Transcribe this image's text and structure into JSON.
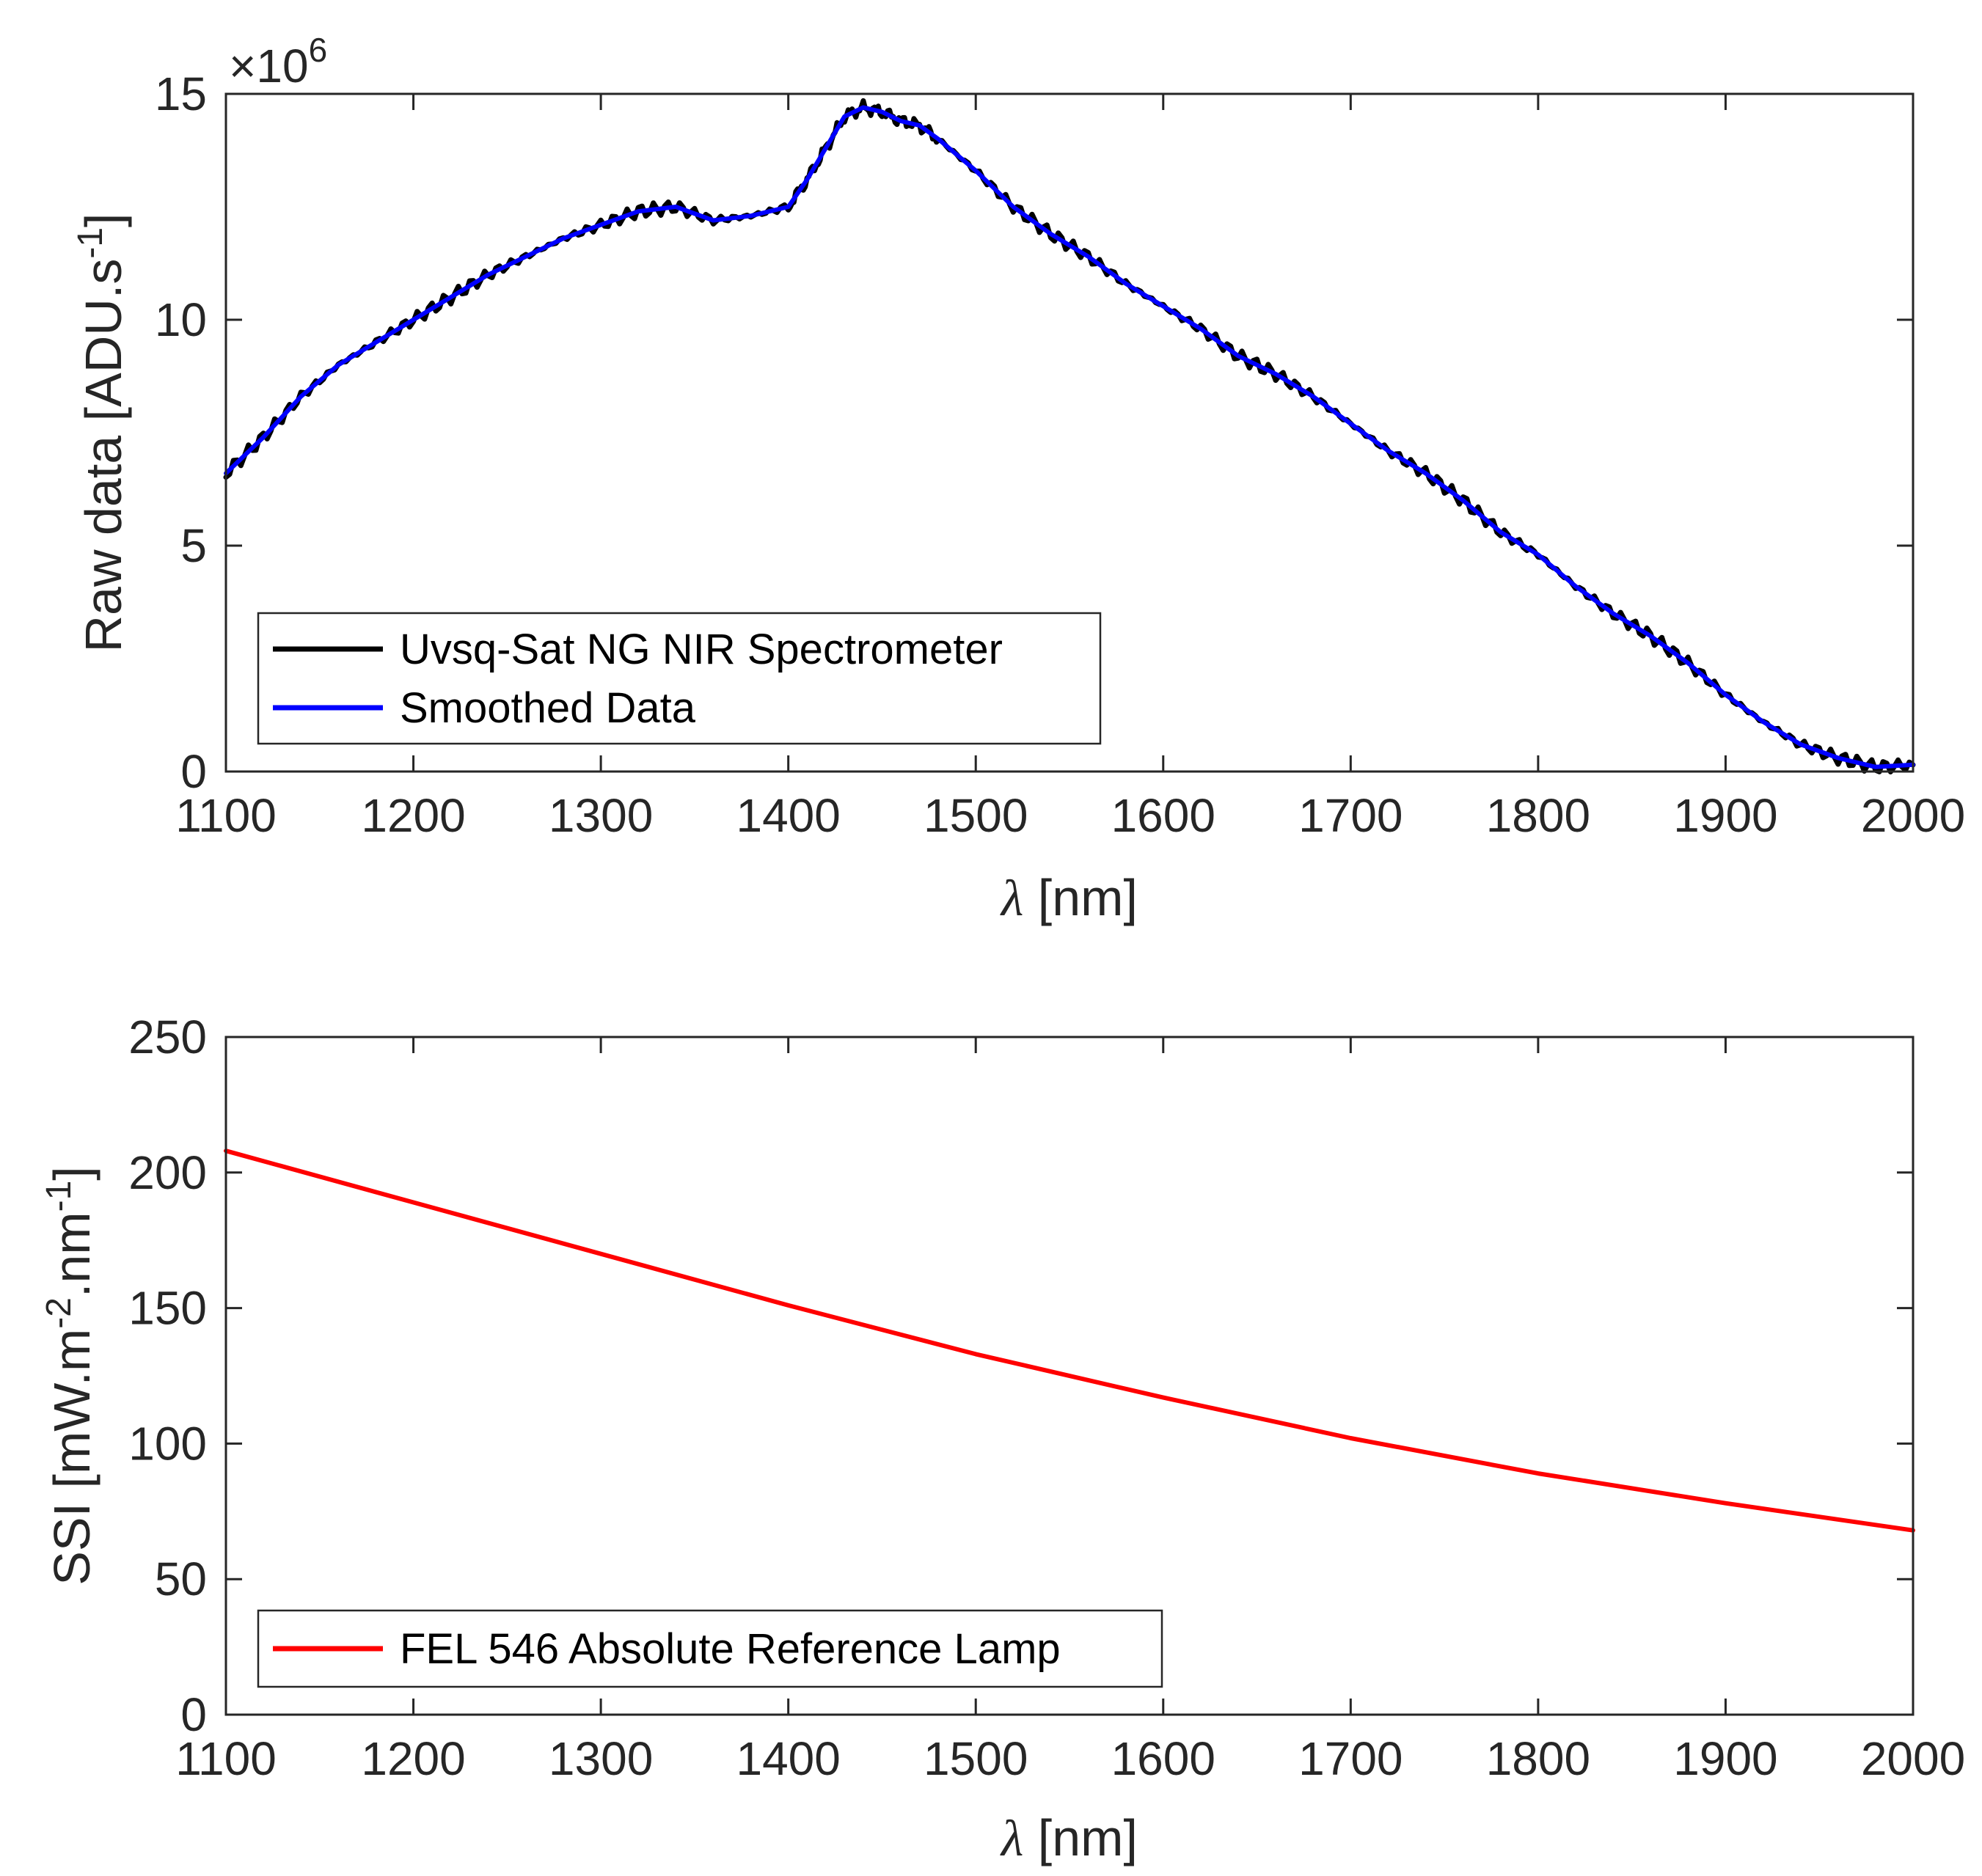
{
  "chart_data": [
    {
      "type": "line",
      "panel": "top",
      "xlabel_symbol": "λ",
      "xlabel_unit": " [nm]",
      "ylabel_text": "Raw data [ADU.s",
      "ylabel_sup": "-1",
      "ylabel_end": "]",
      "xlim": [
        1100,
        2000
      ],
      "ylim": [
        0,
        15
      ],
      "y_multiplier_prefix": "×10",
      "y_multiplier_exp": "6",
      "xticks": [
        "1100",
        "1200",
        "1300",
        "1400",
        "1500",
        "1600",
        "1700",
        "1800",
        "1900",
        "2000"
      ],
      "yticks": [
        "0",
        "5",
        "10",
        "15"
      ],
      "legend_position": "bottom-left",
      "series": [
        {
          "name": "Uvsq-Sat NG NIR Spectrometer",
          "color": "#000000",
          "noise": true,
          "x": [
            1100,
            1120,
            1140,
            1160,
            1180,
            1200,
            1220,
            1240,
            1260,
            1280,
            1300,
            1320,
            1340,
            1360,
            1380,
            1400,
            1410,
            1420,
            1430,
            1440,
            1450,
            1460,
            1470,
            1480,
            1500,
            1520,
            1540,
            1560,
            1580,
            1600,
            1620,
            1640,
            1660,
            1680,
            1700,
            1720,
            1740,
            1760,
            1780,
            1800,
            1820,
            1840,
            1860,
            1880,
            1900,
            1920,
            1940,
            1960,
            1980,
            2000
          ],
          "y": [
            6.6,
            7.4,
            8.3,
            9.0,
            9.5,
            10.0,
            10.5,
            11.0,
            11.4,
            11.8,
            12.1,
            12.4,
            12.5,
            12.2,
            12.3,
            12.5,
            13.1,
            13.8,
            14.5,
            14.7,
            14.6,
            14.4,
            14.3,
            14.0,
            13.3,
            12.5,
            11.9,
            11.4,
            10.8,
            10.3,
            9.8,
            9.2,
            8.8,
            8.3,
            7.7,
            7.1,
            6.6,
            6.0,
            5.3,
            4.8,
            4.1,
            3.5,
            3.0,
            2.4,
            1.7,
            1.1,
            0.6,
            0.3,
            0.1,
            0.15
          ]
        },
        {
          "name": "Smoothed Data",
          "color": "#0000ff",
          "noise": false,
          "x": [
            1100,
            1120,
            1140,
            1160,
            1180,
            1200,
            1220,
            1240,
            1260,
            1280,
            1300,
            1320,
            1340,
            1360,
            1380,
            1400,
            1410,
            1420,
            1430,
            1440,
            1450,
            1460,
            1470,
            1480,
            1500,
            1520,
            1540,
            1560,
            1580,
            1600,
            1620,
            1640,
            1660,
            1680,
            1700,
            1720,
            1740,
            1760,
            1780,
            1800,
            1820,
            1840,
            1860,
            1880,
            1900,
            1920,
            1940,
            1960,
            1980,
            2000
          ],
          "y": [
            6.6,
            7.4,
            8.3,
            9.0,
            9.5,
            10.0,
            10.5,
            11.0,
            11.4,
            11.8,
            12.1,
            12.4,
            12.5,
            12.2,
            12.3,
            12.5,
            13.1,
            13.8,
            14.5,
            14.7,
            14.6,
            14.4,
            14.3,
            14.0,
            13.3,
            12.5,
            11.9,
            11.4,
            10.8,
            10.3,
            9.8,
            9.2,
            8.8,
            8.3,
            7.7,
            7.1,
            6.6,
            6.0,
            5.3,
            4.8,
            4.1,
            3.5,
            3.0,
            2.4,
            1.7,
            1.1,
            0.6,
            0.3,
            0.1,
            0.15
          ]
        }
      ]
    },
    {
      "type": "line",
      "panel": "bottom",
      "xlabel_symbol": "λ",
      "xlabel_unit": " [nm]",
      "ylabel_text": "SSI [mW.m",
      "ylabel_sup1": "-2",
      "ylabel_mid": ".nm",
      "ylabel_sup2": "-1",
      "ylabel_end": "]",
      "xlim": [
        1100,
        2000
      ],
      "ylim": [
        0,
        250
      ],
      "xticks": [
        "1100",
        "1200",
        "1300",
        "1400",
        "1500",
        "1600",
        "1700",
        "1800",
        "1900",
        "2000"
      ],
      "yticks": [
        "0",
        "50",
        "100",
        "150",
        "200",
        "250"
      ],
      "legend_position": "bottom-left",
      "series": [
        {
          "name": "FEL 546 Absolute Reference Lamp",
          "color": "#ff0000",
          "noise": false,
          "x": [
            1100,
            1200,
            1300,
            1400,
            1500,
            1600,
            1700,
            1800,
            1900,
            2000
          ],
          "y": [
            208,
            189,
            170,
            151,
            133,
            117,
            102,
            89,
            78,
            68
          ]
        }
      ]
    }
  ]
}
